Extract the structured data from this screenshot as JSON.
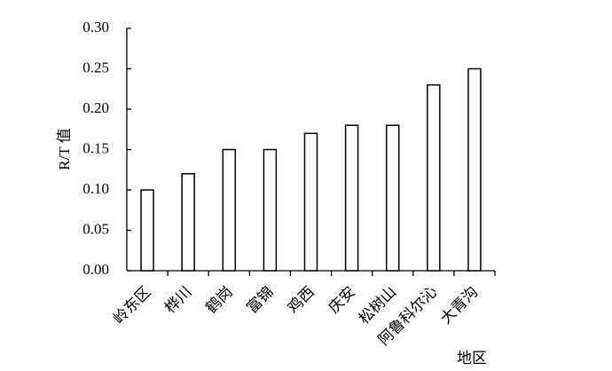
{
  "chart_data": {
    "type": "bar",
    "y_label": "R/T 值",
    "x_label": "地区",
    "categories": [
      "岭东区",
      "桦川",
      "鹤岗",
      "富锦",
      "鸡西",
      "庆安",
      "松树山",
      "阿鲁科尔沁",
      "大青沟"
    ],
    "values": [
      0.1,
      0.12,
      0.15,
      0.15,
      0.17,
      0.18,
      0.18,
      0.23,
      0.25
    ],
    "color": "#ffffff",
    "ylim": [
      0,
      0.3
    ],
    "yticks": [
      {
        "value": 0,
        "label": "0.00"
      },
      {
        "value": 0.05,
        "label": "0.05"
      },
      {
        "value": 0.1,
        "label": "0.10"
      },
      {
        "value": 0.15,
        "label": "0.15"
      },
      {
        "value": 0.2,
        "label": "0.20"
      },
      {
        "value": 0.25,
        "label": "0.25"
      },
      {
        "value": 0.3,
        "label": "0.30"
      }
    ],
    "grid": false
  }
}
